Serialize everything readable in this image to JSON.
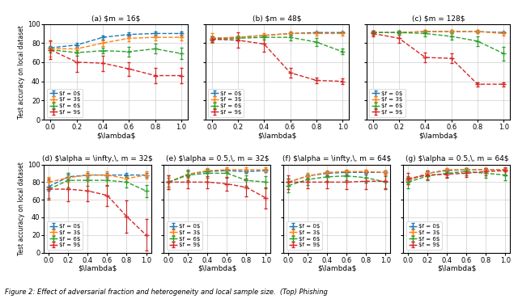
{
  "chart_data": [
    {
      "type": "line",
      "title": "(a) $m = 16$",
      "x_label": "$\\lambda$",
      "y_label": "Test accuracy on local dataset",
      "x": [
        0.0,
        0.2,
        0.4,
        0.6,
        0.8,
        1.0
      ],
      "xlim": [
        -0.05,
        1.05
      ],
      "xticks": [
        0.0,
        0.2,
        0.4,
        0.6,
        0.8,
        1.0
      ],
      "ylim": [
        0,
        100
      ],
      "yticks": [
        0,
        20,
        40,
        60,
        80,
        100
      ],
      "grid": true,
      "legend": "lower left",
      "marker": "+",
      "line_style": "dashed",
      "series": [
        {
          "name": "$f = 0$",
          "values": [
            75,
            78,
            86,
            89,
            90,
            90
          ],
          "errors": [
            2,
            2,
            2,
            2,
            2,
            2
          ]
        },
        {
          "name": "$f = 3$",
          "values": [
            74,
            74,
            80,
            85,
            86,
            86
          ],
          "errors": [
            8,
            4,
            3,
            3,
            3,
            3
          ]
        },
        {
          "name": "$f = 6$",
          "values": [
            73,
            70,
            72,
            71,
            74,
            69
          ],
          "errors": [
            3,
            3,
            3,
            5,
            5,
            6
          ]
        },
        {
          "name": "$f = 9$",
          "values": [
            73,
            60,
            59,
            53,
            46,
            46
          ],
          "errors": [
            10,
            10,
            8,
            7,
            8,
            8
          ]
        }
      ]
    },
    {
      "type": "line",
      "title": "(b) $m = 48$",
      "x_label": "$\\lambda$",
      "x": [
        0.0,
        0.2,
        0.4,
        0.6,
        0.8,
        1.0
      ],
      "xlim": [
        -0.05,
        1.05
      ],
      "xticks": [
        0.0,
        0.2,
        0.4,
        0.6,
        0.8,
        1.0
      ],
      "ylim": [
        0,
        100
      ],
      "yticks": [
        0,
        20,
        40,
        60,
        80,
        100
      ],
      "grid": true,
      "legend": "lower left",
      "marker": "+",
      "line_style": "dashed",
      "tick_labels": "x",
      "series": [
        {
          "name": "$f = 0$",
          "values": [
            85,
            86,
            88,
            90,
            91,
            91
          ],
          "errors": [
            2,
            1,
            1,
            1,
            1,
            1
          ]
        },
        {
          "name": "$f = 3$",
          "values": [
            85,
            86,
            88,
            90,
            90,
            90
          ],
          "errors": [
            5,
            2,
            2,
            2,
            2,
            2
          ]
        },
        {
          "name": "$f = 6$",
          "values": [
            84,
            85,
            86,
            86,
            81,
            71
          ],
          "errors": [
            3,
            2,
            2,
            3,
            4,
            3
          ]
        },
        {
          "name": "$f = 9$",
          "values": [
            84,
            83,
            79,
            49,
            41,
            40
          ],
          "errors": [
            3,
            8,
            8,
            5,
            3,
            3
          ]
        }
      ]
    },
    {
      "type": "line",
      "title": "(c) $m = 128$",
      "x_label": "$\\lambda$",
      "x": [
        0.0,
        0.2,
        0.4,
        0.6,
        0.8,
        1.0
      ],
      "xlim": [
        -0.05,
        1.05
      ],
      "xticks": [
        0.0,
        0.2,
        0.4,
        0.6,
        0.8,
        1.0
      ],
      "ylim": [
        0,
        100
      ],
      "yticks": [
        0,
        20,
        40,
        60,
        80,
        100
      ],
      "grid": true,
      "legend": "lower left",
      "marker": "+",
      "line_style": "dashed",
      "tick_labels": "x",
      "series": [
        {
          "name": "$f = 0$",
          "values": [
            91,
            91,
            92,
            92,
            92,
            91
          ],
          "errors": [
            1,
            1,
            1,
            1,
            1,
            1
          ]
        },
        {
          "name": "$f = 3$",
          "values": [
            91,
            91,
            92,
            92,
            92,
            90
          ],
          "errors": [
            2,
            2,
            2,
            2,
            2,
            2
          ]
        },
        {
          "name": "$f = 6$",
          "values": [
            91,
            91,
            90,
            87,
            82,
            69
          ],
          "errors": [
            2,
            2,
            3,
            3,
            5,
            7
          ]
        },
        {
          "name": "$f = 9$",
          "values": [
            90,
            85,
            65,
            64,
            37,
            37
          ],
          "errors": [
            3,
            5,
            5,
            5,
            2,
            2
          ]
        }
      ]
    },
    {
      "type": "line",
      "title": "(d) $\\alpha = \\infty,\\, m = 32$",
      "x_label": "$\\lambda$",
      "y_label": "Test accuracy on local dataset",
      "x": [
        0.0,
        0.2,
        0.4,
        0.6,
        0.8,
        1.0
      ],
      "xlim": [
        -0.05,
        1.05
      ],
      "xticks": [
        0.0,
        0.2,
        0.4,
        0.6,
        0.8,
        1.0
      ],
      "ylim": [
        0,
        100
      ],
      "yticks": [
        0,
        20,
        40,
        60,
        80,
        100
      ],
      "grid": true,
      "legend": "lower left",
      "marker": "+",
      "line_style": "dashed",
      "series": [
        {
          "name": "$f = 0$",
          "values": [
            75,
            86,
            88,
            88,
            88,
            88
          ],
          "errors": [
            5,
            3,
            2,
            2,
            2,
            2
          ]
        },
        {
          "name": "$f = 3$",
          "values": [
            80,
            85,
            88,
            88,
            84,
            88
          ],
          "errors": [
            6,
            5,
            4,
            4,
            4,
            4
          ]
        },
        {
          "name": "$f = 6$",
          "values": [
            72,
            82,
            82,
            82,
            80,
            70
          ],
          "errors": [
            10,
            8,
            6,
            6,
            6,
            7
          ]
        },
        {
          "name": "$f = 9$",
          "values": [
            72,
            72,
            70,
            65,
            41,
            20
          ],
          "errors": [
            12,
            14,
            12,
            12,
            18,
            18
          ]
        }
      ]
    },
    {
      "type": "line",
      "title": "(e) $\\alpha = 0.5,\\, m = 32$",
      "x_label": "$\\lambda$",
      "x": [
        0.0,
        0.2,
        0.4,
        0.6,
        0.8,
        1.0
      ],
      "xlim": [
        -0.05,
        1.05
      ],
      "xticks": [
        0.0,
        0.2,
        0.4,
        0.6,
        0.8,
        1.0
      ],
      "ylim": [
        0,
        100
      ],
      "yticks": [
        0,
        20,
        40,
        60,
        80,
        100
      ],
      "grid": true,
      "legend": "lower left",
      "marker": "+",
      "line_style": "dashed",
      "tick_labels": "x",
      "series": [
        {
          "name": "$f = 0$",
          "values": [
            80,
            89,
            92,
            93,
            92,
            93
          ],
          "errors": [
            5,
            3,
            2,
            2,
            2,
            2
          ]
        },
        {
          "name": "$f = 3$",
          "values": [
            80,
            89,
            93,
            94,
            94,
            94
          ],
          "errors": [
            5,
            4,
            3,
            3,
            3,
            3
          ]
        },
        {
          "name": "$f = 6$",
          "values": [
            80,
            88,
            90,
            90,
            82,
            80
          ],
          "errors": [
            8,
            6,
            5,
            5,
            6,
            7
          ]
        },
        {
          "name": "$f = 9$",
          "values": [
            80,
            80,
            80,
            78,
            74,
            62
          ],
          "errors": [
            8,
            7,
            7,
            8,
            10,
            12
          ]
        }
      ]
    },
    {
      "type": "line",
      "title": "(f) $\\alpha = \\infty,\\, m = 64$",
      "x_label": "$\\lambda$",
      "x": [
        0.0,
        0.2,
        0.4,
        0.6,
        0.8,
        1.0
      ],
      "xlim": [
        -0.05,
        1.05
      ],
      "xticks": [
        0.0,
        0.2,
        0.4,
        0.6,
        0.8,
        1.0
      ],
      "ylim": [
        0,
        100
      ],
      "yticks": [
        0,
        20,
        40,
        60,
        80,
        100
      ],
      "grid": true,
      "legend": "lower left",
      "marker": "+",
      "line_style": "dashed",
      "tick_labels": "x",
      "series": [
        {
          "name": "$f = 0$",
          "values": [
            80,
            87,
            90,
            91,
            91,
            91
          ],
          "errors": [
            4,
            2,
            2,
            2,
            2,
            2
          ]
        },
        {
          "name": "$f = 3$",
          "values": [
            80,
            87,
            91,
            92,
            92,
            91
          ],
          "errors": [
            4,
            3,
            2,
            2,
            2,
            2
          ]
        },
        {
          "name": "$f = 6$",
          "values": [
            76,
            83,
            86,
            87,
            85,
            80
          ],
          "errors": [
            8,
            6,
            5,
            5,
            6,
            7
          ]
        },
        {
          "name": "$f = 9$",
          "values": [
            80,
            80,
            80,
            80,
            81,
            81
          ],
          "errors": [
            8,
            7,
            7,
            8,
            9,
            9
          ]
        }
      ]
    },
    {
      "type": "line",
      "title": "(g) $\\alpha = 0.5,\\, m = 64$",
      "x_label": "$\\lambda$",
      "x": [
        0.0,
        0.2,
        0.4,
        0.6,
        0.8,
        1.0
      ],
      "xlim": [
        -0.05,
        1.05
      ],
      "xticks": [
        0.0,
        0.2,
        0.4,
        0.6,
        0.8,
        1.0
      ],
      "ylim": [
        0,
        100
      ],
      "yticks": [
        0,
        20,
        40,
        60,
        80,
        100
      ],
      "grid": true,
      "legend": "lower left",
      "marker": "+",
      "line_style": "dashed",
      "tick_labels": "x",
      "series": [
        {
          "name": "$f = 0$",
          "values": [
            82,
            90,
            93,
            94,
            94,
            94
          ],
          "errors": [
            3,
            2,
            2,
            2,
            2,
            2
          ]
        },
        {
          "name": "$f = 3$",
          "values": [
            82,
            90,
            94,
            94,
            94,
            94
          ],
          "errors": [
            4,
            3,
            2,
            2,
            2,
            2
          ]
        },
        {
          "name": "$f = 6$",
          "values": [
            80,
            87,
            90,
            92,
            90,
            88
          ],
          "errors": [
            7,
            5,
            4,
            4,
            5,
            6
          ]
        },
        {
          "name": "$f = 9$",
          "values": [
            84,
            88,
            89,
            90,
            92,
            93
          ],
          "errors": [
            6,
            5,
            4,
            4,
            4,
            4
          ]
        }
      ]
    }
  ],
  "caption": "Figure 2: Effect of adversarial fraction and heterogeneity and local sample size.  (Top) Phishing"
}
